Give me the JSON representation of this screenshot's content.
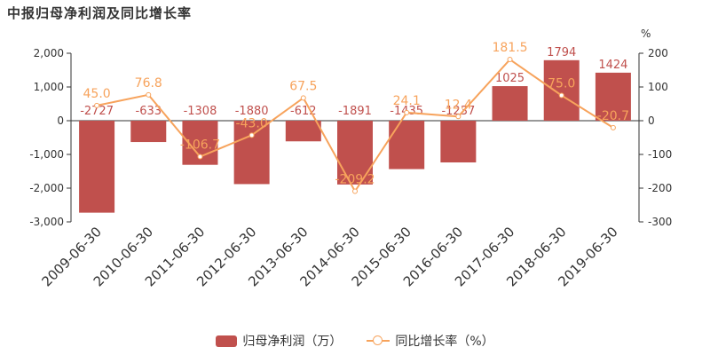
{
  "title": "中报归母净利润及同比增长率",
  "colors": {
    "bar": "#c0504d",
    "line": "#f7a35c",
    "axis": "#333333",
    "text": "#333333"
  },
  "legend": {
    "bar_label": "归母净利润（万）",
    "line_label": "同比增长率（%）"
  },
  "chart_data": {
    "type": "bar",
    "categories": [
      "2009-06-30",
      "2010-06-30",
      "2011-06-30",
      "2012-06-30",
      "2013-06-30",
      "2014-06-30",
      "2015-06-30",
      "2016-06-30",
      "2017-06-30",
      "2018-06-30",
      "2019-06-30"
    ],
    "series": [
      {
        "name": "归母净利润（万）",
        "type": "bar",
        "axis": "left",
        "values": [
          -2727,
          -633,
          -1308,
          -1880,
          -612,
          -1891,
          -1435,
          -1237,
          1025,
          1794,
          1424
        ]
      },
      {
        "name": "同比增长率（%）",
        "type": "line",
        "axis": "right",
        "values": [
          45.0,
          76.8,
          -106.7,
          -43.0,
          67.5,
          -209.2,
          24.1,
          12.4,
          181.5,
          75.0,
          -20.7
        ]
      }
    ],
    "y_left": {
      "min": -3000,
      "max": 2000,
      "ticks": [
        "2,000",
        "1,000",
        "0",
        "-1,000",
        "-2,000",
        "-3,000"
      ]
    },
    "y_right": {
      "min": -300,
      "max": 200,
      "ticks": [
        "200",
        "100",
        "0",
        "-100",
        "-200",
        "-300"
      ],
      "unit": "%"
    },
    "grid": false,
    "legend_position": "bottom"
  }
}
